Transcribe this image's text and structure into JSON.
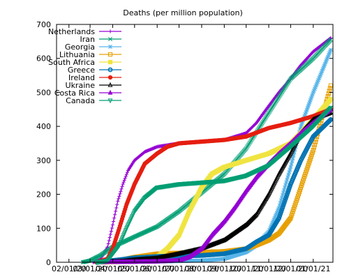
{
  "chart_data": {
    "type": "line",
    "title": "Deaths (per million population)",
    "xlabel": "",
    "ylabel": "",
    "grid": false,
    "legend_position": "top-left",
    "x_axis": {
      "type": "date",
      "range": [
        "2020-01-15",
        "2021-01-28"
      ],
      "ticks": [
        {
          "date": "2020-02-01",
          "label": "02/01/20"
        },
        {
          "date": "2020-03-01",
          "label": "03/01/20"
        },
        {
          "date": "2020-04-01",
          "label": "04/01/20"
        },
        {
          "date": "2020-05-01",
          "label": "05/01/20"
        },
        {
          "date": "2020-06-01",
          "label": "06/01/20"
        },
        {
          "date": "2020-07-01",
          "label": "07/01/20"
        },
        {
          "date": "2020-08-01",
          "label": "08/01/20"
        },
        {
          "date": "2020-09-01",
          "label": "09/01/20"
        },
        {
          "date": "2020-10-01",
          "label": "10/01/20"
        },
        {
          "date": "2020-11-01",
          "label": "11/01/20"
        },
        {
          "date": "2020-12-01",
          "label": "12/01/20"
        },
        {
          "date": "2021-01-01",
          "label": "01/01/21"
        }
      ]
    },
    "y_axis": {
      "range": [
        0,
        700
      ],
      "ticks": [
        {
          "value": 0,
          "label": "0"
        },
        {
          "value": 100,
          "label": "100"
        },
        {
          "value": 200,
          "label": "200"
        },
        {
          "value": 300,
          "label": "300"
        },
        {
          "value": 400,
          "label": "400"
        },
        {
          "value": 500,
          "label": "500"
        },
        {
          "value": 600,
          "label": "600"
        },
        {
          "value": 700,
          "label": "700"
        }
      ]
    },
    "series": [
      {
        "name": "Netherlands",
        "color": "#9400d3",
        "marker": "plus",
        "points": [
          [
            "2020-03-05",
            0
          ],
          [
            "2020-03-15",
            8
          ],
          [
            "2020-03-25",
            45
          ],
          [
            "2020-04-01",
            110
          ],
          [
            "2020-04-08",
            180
          ],
          [
            "2020-04-15",
            230
          ],
          [
            "2020-04-22",
            270
          ],
          [
            "2020-05-01",
            300
          ],
          [
            "2020-05-15",
            325
          ],
          [
            "2020-06-01",
            340
          ],
          [
            "2020-07-01",
            350
          ],
          [
            "2020-08-01",
            355
          ],
          [
            "2020-09-01",
            360
          ],
          [
            "2020-10-01",
            380
          ],
          [
            "2020-10-15",
            410
          ],
          [
            "2020-11-01",
            460
          ],
          [
            "2020-11-15",
            500
          ],
          [
            "2020-12-01",
            540
          ],
          [
            "2020-12-15",
            580
          ],
          [
            "2021-01-01",
            620
          ],
          [
            "2021-01-25",
            660
          ]
        ]
      },
      {
        "name": "Iran",
        "color": "#009e73",
        "marker": "x",
        "points": [
          [
            "2020-02-20",
            0
          ],
          [
            "2020-03-01",
            5
          ],
          [
            "2020-03-15",
            20
          ],
          [
            "2020-04-01",
            45
          ],
          [
            "2020-05-01",
            75
          ],
          [
            "2020-06-01",
            105
          ],
          [
            "2020-07-01",
            150
          ],
          [
            "2020-08-01",
            205
          ],
          [
            "2020-09-01",
            260
          ],
          [
            "2020-10-01",
            335
          ],
          [
            "2020-11-01",
            440
          ],
          [
            "2020-12-01",
            540
          ],
          [
            "2021-01-01",
            600
          ],
          [
            "2021-01-25",
            655
          ]
        ]
      },
      {
        "name": "Georgia",
        "color": "#56b4e9",
        "marker": "asterisk",
        "points": [
          [
            "2020-04-01",
            0
          ],
          [
            "2020-06-01",
            2
          ],
          [
            "2020-08-01",
            5
          ],
          [
            "2020-09-01",
            10
          ],
          [
            "2020-10-01",
            30
          ],
          [
            "2020-10-15",
            50
          ],
          [
            "2020-11-01",
            90
          ],
          [
            "2020-11-15",
            160
          ],
          [
            "2020-12-01",
            280
          ],
          [
            "2020-12-15",
            400
          ],
          [
            "2021-01-01",
            500
          ],
          [
            "2021-01-25",
            625
          ]
        ]
      },
      {
        "name": "Lithuania",
        "color": "#e69f00",
        "marker": "square",
        "points": [
          [
            "2020-03-20",
            0
          ],
          [
            "2020-04-15",
            8
          ],
          [
            "2020-05-01",
            15
          ],
          [
            "2020-06-01",
            25
          ],
          [
            "2020-08-01",
            30
          ],
          [
            "2020-09-01",
            32
          ],
          [
            "2020-10-01",
            40
          ],
          [
            "2020-10-15",
            50
          ],
          [
            "2020-11-01",
            65
          ],
          [
            "2020-11-15",
            85
          ],
          [
            "2020-12-01",
            130
          ],
          [
            "2020-12-15",
            220
          ],
          [
            "2021-01-01",
            330
          ],
          [
            "2021-01-25",
            520
          ]
        ]
      },
      {
        "name": "South Africa",
        "color": "#f0e442",
        "marker": "filled-square",
        "points": [
          [
            "2020-03-25",
            0
          ],
          [
            "2020-05-01",
            3
          ],
          [
            "2020-06-01",
            15
          ],
          [
            "2020-06-15",
            40
          ],
          [
            "2020-07-01",
            80
          ],
          [
            "2020-07-15",
            150
          ],
          [
            "2020-08-01",
            220
          ],
          [
            "2020-08-15",
            260
          ],
          [
            "2020-09-01",
            280
          ],
          [
            "2020-10-01",
            300
          ],
          [
            "2020-11-01",
            320
          ],
          [
            "2020-12-01",
            350
          ],
          [
            "2020-12-15",
            380
          ],
          [
            "2021-01-01",
            420
          ],
          [
            "2021-01-25",
            480
          ]
        ]
      },
      {
        "name": "Greece",
        "color": "#0072b2",
        "marker": "circle-dot",
        "points": [
          [
            "2020-03-10",
            0
          ],
          [
            "2020-04-01",
            5
          ],
          [
            "2020-05-01",
            13
          ],
          [
            "2020-06-01",
            17
          ],
          [
            "2020-08-01",
            20
          ],
          [
            "2020-09-01",
            25
          ],
          [
            "2020-10-01",
            40
          ],
          [
            "2020-10-15",
            60
          ],
          [
            "2020-11-01",
            80
          ],
          [
            "2020-11-15",
            130
          ],
          [
            "2020-12-01",
            230
          ],
          [
            "2020-12-15",
            300
          ],
          [
            "2021-01-01",
            370
          ],
          [
            "2021-01-25",
            420
          ]
        ]
      },
      {
        "name": "Ireland",
        "color": "#e51e10",
        "marker": "filled-circle",
        "points": [
          [
            "2020-03-10",
            0
          ],
          [
            "2020-03-25",
            10
          ],
          [
            "2020-04-01",
            40
          ],
          [
            "2020-04-10",
            100
          ],
          [
            "2020-04-20",
            170
          ],
          [
            "2020-05-01",
            230
          ],
          [
            "2020-05-15",
            290
          ],
          [
            "2020-06-01",
            320
          ],
          [
            "2020-06-15",
            340
          ],
          [
            "2020-07-01",
            350
          ],
          [
            "2020-08-01",
            355
          ],
          [
            "2020-09-01",
            360
          ],
          [
            "2020-10-01",
            370
          ],
          [
            "2020-11-01",
            395
          ],
          [
            "2020-12-01",
            410
          ],
          [
            "2021-01-01",
            430
          ],
          [
            "2021-01-25",
            450
          ]
        ]
      },
      {
        "name": "Ukraine",
        "color": "#000000",
        "marker": "triangle",
        "points": [
          [
            "2020-03-15",
            0
          ],
          [
            "2020-04-15",
            3
          ],
          [
            "2020-05-01",
            7
          ],
          [
            "2020-06-01",
            12
          ],
          [
            "2020-07-01",
            25
          ],
          [
            "2020-08-01",
            40
          ],
          [
            "2020-09-01",
            65
          ],
          [
            "2020-10-01",
            110
          ],
          [
            "2020-10-15",
            140
          ],
          [
            "2020-11-01",
            200
          ],
          [
            "2020-11-15",
            260
          ],
          [
            "2020-12-01",
            320
          ],
          [
            "2020-12-15",
            380
          ],
          [
            "2021-01-01",
            420
          ],
          [
            "2021-01-25",
            440
          ]
        ]
      },
      {
        "name": "Costa Rica",
        "color": "#9400d3",
        "marker": "filled-triangle",
        "points": [
          [
            "2020-03-20",
            0
          ],
          [
            "2020-05-01",
            1
          ],
          [
            "2020-06-01",
            2
          ],
          [
            "2020-07-01",
            5
          ],
          [
            "2020-07-15",
            15
          ],
          [
            "2020-08-01",
            40
          ],
          [
            "2020-08-15",
            80
          ],
          [
            "2020-09-01",
            120
          ],
          [
            "2020-09-15",
            160
          ],
          [
            "2020-10-01",
            210
          ],
          [
            "2020-10-15",
            250
          ],
          [
            "2020-11-01",
            290
          ],
          [
            "2020-11-15",
            320
          ],
          [
            "2020-12-01",
            350
          ],
          [
            "2020-12-15",
            380
          ],
          [
            "2021-01-01",
            410
          ],
          [
            "2021-01-25",
            450
          ]
        ]
      },
      {
        "name": "Canada",
        "color": "#009e73",
        "marker": "inverted-triangle",
        "points": [
          [
            "2020-03-10",
            0
          ],
          [
            "2020-03-25",
            5
          ],
          [
            "2020-04-10",
            50
          ],
          [
            "2020-04-20",
            100
          ],
          [
            "2020-05-01",
            150
          ],
          [
            "2020-05-15",
            190
          ],
          [
            "2020-06-01",
            220
          ],
          [
            "2020-07-01",
            230
          ],
          [
            "2020-08-01",
            235
          ],
          [
            "2020-09-01",
            240
          ],
          [
            "2020-10-01",
            255
          ],
          [
            "2020-11-01",
            285
          ],
          [
            "2020-12-01",
            340
          ],
          [
            "2021-01-01",
            400
          ],
          [
            "2021-01-25",
            455
          ]
        ]
      }
    ]
  }
}
